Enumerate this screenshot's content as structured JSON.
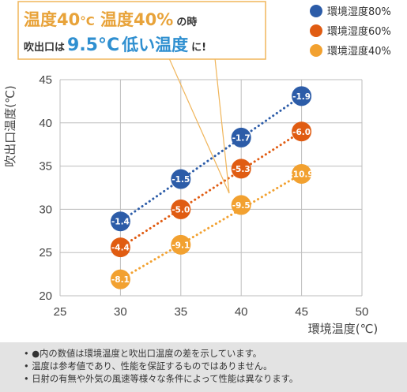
{
  "callout": {
    "line1_a": "温度40",
    "line1_a_unit": "°C",
    "line1_b": " 温度40%",
    "line1_c": "の時",
    "line2_a": "吹出口は",
    "line2_b": "9.5°C",
    "line2_c": "低い温度",
    "line2_d": "に!"
  },
  "colors": {
    "series_80": "#2c5ca8",
    "series_60": "#e05c12",
    "series_40": "#f2a130",
    "callout_border": "#f0b55a"
  },
  "chart_data": {
    "type": "scatter",
    "title": "",
    "xlabel": "環境温度(℃)",
    "ylabel": "吹出口温度(℃)",
    "xlim": [
      25,
      50
    ],
    "ylim": [
      20,
      45
    ],
    "x_ticks": [
      25,
      30,
      35,
      40,
      45,
      50
    ],
    "y_ticks": [
      20,
      25,
      30,
      35,
      40,
      45
    ],
    "grid": true,
    "legend_position": "top-right",
    "series": [
      {
        "name": "環境湿度80%",
        "color_key": "series_80",
        "points": [
          {
            "x": 30,
            "y": 28.6,
            "label": "-1.4"
          },
          {
            "x": 35,
            "y": 33.5,
            "label": "-1.5"
          },
          {
            "x": 40,
            "y": 38.3,
            "label": "-1.7"
          },
          {
            "x": 45,
            "y": 43.1,
            "label": "-1.9"
          }
        ]
      },
      {
        "name": "環境湿度60%",
        "color_key": "series_60",
        "points": [
          {
            "x": 30,
            "y": 25.6,
            "label": "-4.4"
          },
          {
            "x": 35,
            "y": 30.0,
            "label": "-5.0"
          },
          {
            "x": 40,
            "y": 34.7,
            "label": "-5.3"
          },
          {
            "x": 45,
            "y": 39.0,
            "label": "-6.0"
          }
        ]
      },
      {
        "name": "環境湿度40%",
        "color_key": "series_40",
        "points": [
          {
            "x": 30,
            "y": 21.9,
            "label": "-8.1"
          },
          {
            "x": 35,
            "y": 25.9,
            "label": "-9.1"
          },
          {
            "x": 40,
            "y": 30.5,
            "label": "-9.5"
          },
          {
            "x": 45,
            "y": 34.1,
            "label": "-10.9"
          }
        ]
      }
    ]
  },
  "notes": [
    "• ●内の数値は環境温度と吹出口温度の差を示しています。",
    "• 温度は参考値であり、性能を保証するものではありません。",
    "• 日射の有無や外気の風速等様々な条件によって性能は異なります。"
  ]
}
